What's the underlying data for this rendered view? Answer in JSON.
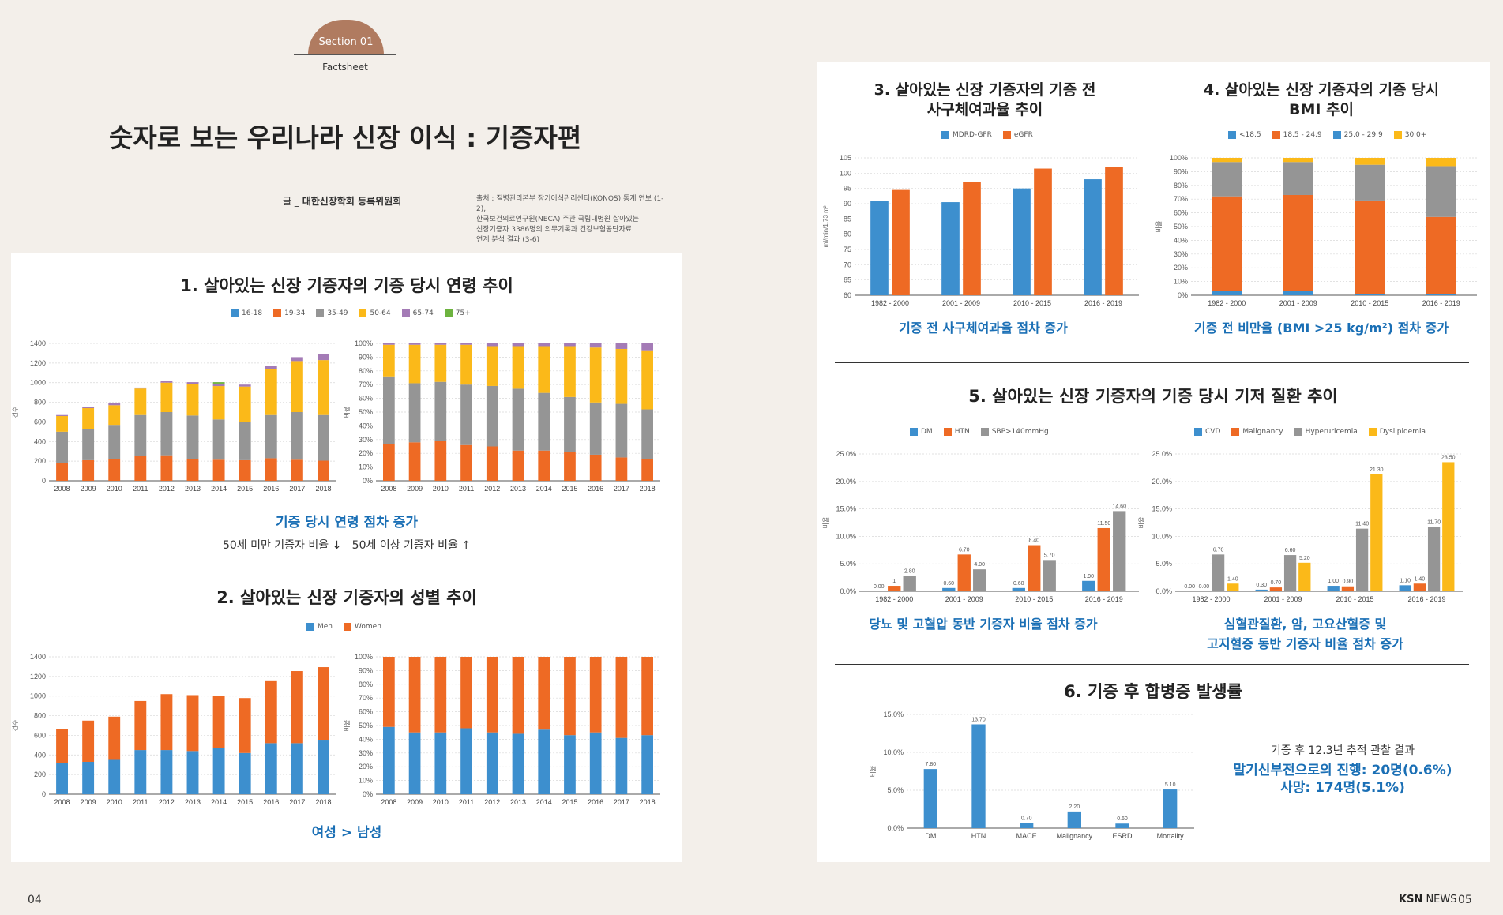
{
  "header": {
    "section": "Section 01",
    "factsheet": "Factsheet",
    "title": "숫자로 보는 우리나라 신장 이식 : 기증자편",
    "byline_prefix": "글 _",
    "byline_author": "대한신장학회 등록위원회",
    "source": "출처 : 질병관리본부 장기이식관리센터(KONOS) 통계 연보 (1-2),\n한국보건의료연구원(NECA) 주관 국립대병원 살아있는\n신장기증자 3386명의 의무기록과 건강보험공단자료\n연계 분석 결과 (3-6)"
  },
  "footer": {
    "page_left": "04",
    "brand_bold": "KSN",
    "brand_rest": " NEWS",
    "page_right": "05"
  },
  "colors": {
    "blue": "#3d8fce",
    "orange": "#ee6a24",
    "gray": "#959595",
    "yellow": "#fbb919",
    "purple": "#a47bb6",
    "green": "#6db33f",
    "caption": "#1a6fb5"
  },
  "sections": {
    "s1": {
      "title": "1. 살아있는 신장 기증자의 기증 당시 연령 추이",
      "caption": "기증 당시 연령 점차 증가",
      "subcaption": "50세 미만 기증자 비율 ↓   50세 이상 기증자 비율 ↑",
      "ylabel": "건수",
      "ylabel_pct": "비율"
    },
    "s2": {
      "title": "2. 살아있는 신장 기증자의 성별 추이",
      "caption": "여성 > 남성",
      "ylabel": "건수",
      "ylabel_pct": "비율"
    },
    "s3": {
      "title": "3. 살아있는 신장 기증자의 기증 전\n사구체여과율 추이",
      "caption": "기증 전 사구체여과율 점차 증가",
      "ylabel": "ml/min/1.73 m²"
    },
    "s4": {
      "title": "4. 살아있는 신장 기증자의 기증 당시\nBMI 추이",
      "caption": "기증 전 비만율 (BMI >25 kg/m²) 점차 증가",
      "ylabel": "비율"
    },
    "s5": {
      "title": "5. 살아있는 신장 기증자의 기증 당시 기저 질환 추이",
      "caption_left": "당뇨 및 고혈압 동반 기증자 비율 점차 증가",
      "caption_right": "심혈관질환, 암, 고요산혈증 및\n고지혈증 동반 기증자 비율 점차 증가",
      "ylabel": "비율"
    },
    "s6": {
      "title": "6. 기증 후 합병증 발생률",
      "note": "기증 후 12.3년 추적 관찰 결과",
      "result": "말기신부전으로의 진행: 20명(0.6%)\n사망: 174명(5.1%)",
      "ylabel": "비율"
    }
  },
  "chart_data": [
    {
      "id": "age_count",
      "type": "bar",
      "stacked": true,
      "categories": [
        "2008",
        "2009",
        "2010",
        "2011",
        "2012",
        "2013",
        "2014",
        "2015",
        "2016",
        "2017",
        "2018"
      ],
      "ylim": [
        0,
        1400
      ],
      "yticks": [
        0,
        200,
        400,
        600,
        800,
        1000,
        1200,
        1400
      ],
      "series": [
        {
          "name": "16-18",
          "color": "#3d8fce",
          "values": [
            0,
            0,
            0,
            0,
            0,
            0,
            0,
            0,
            0,
            0,
            0
          ]
        },
        {
          "name": "19-34",
          "color": "#ee6a24",
          "values": [
            180,
            210,
            220,
            250,
            260,
            225,
            215,
            210,
            230,
            215,
            205
          ]
        },
        {
          "name": "35-49",
          "color": "#959595",
          "values": [
            320,
            320,
            350,
            420,
            440,
            440,
            410,
            390,
            440,
            485,
            465
          ]
        },
        {
          "name": "50-64",
          "color": "#fbb919",
          "values": [
            160,
            210,
            200,
            270,
            300,
            320,
            340,
            360,
            470,
            520,
            560
          ]
        },
        {
          "name": "65-74",
          "color": "#a47bb6",
          "values": [
            10,
            10,
            20,
            10,
            20,
            20,
            25,
            20,
            30,
            40,
            60
          ]
        },
        {
          "name": "75+",
          "color": "#6db33f",
          "values": [
            0,
            0,
            0,
            0,
            0,
            0,
            15,
            0,
            0,
            0,
            0
          ]
        }
      ]
    },
    {
      "id": "age_pct",
      "type": "bar",
      "stacked": true,
      "categories": [
        "2008",
        "2009",
        "2010",
        "2011",
        "2012",
        "2013",
        "2014",
        "2015",
        "2016",
        "2017",
        "2018"
      ],
      "ylim": [
        0,
        100
      ],
      "yticks": [
        0,
        10,
        20,
        30,
        40,
        50,
        60,
        70,
        80,
        90,
        100
      ],
      "series": [
        {
          "name": "16-18",
          "color": "#3d8fce",
          "values": [
            0,
            0,
            0,
            0,
            0,
            0,
            0,
            0,
            0,
            0,
            0
          ]
        },
        {
          "name": "19-34",
          "color": "#ee6a24",
          "values": [
            27,
            28,
            29,
            26,
            25,
            22,
            22,
            21,
            19,
            17,
            16
          ]
        },
        {
          "name": "35-49",
          "color": "#959595",
          "values": [
            49,
            43,
            43,
            44,
            44,
            45,
            42,
            40,
            38,
            39,
            36
          ]
        },
        {
          "name": "50-64",
          "color": "#fbb919",
          "values": [
            23,
            28,
            27,
            29,
            29,
            31,
            34,
            37,
            40,
            40,
            43
          ]
        },
        {
          "name": "65-74",
          "color": "#a47bb6",
          "values": [
            1,
            1,
            1,
            1,
            2,
            2,
            2,
            2,
            3,
            4,
            5
          ]
        },
        {
          "name": "75+",
          "color": "#6db33f",
          "values": [
            0,
            0,
            0,
            0,
            0,
            0,
            0,
            0,
            0,
            0,
            0
          ]
        }
      ]
    },
    {
      "id": "sex_count",
      "type": "bar",
      "stacked": true,
      "categories": [
        "2008",
        "2009",
        "2010",
        "2011",
        "2012",
        "2013",
        "2014",
        "2015",
        "2016",
        "2017",
        "2018"
      ],
      "ylim": [
        0,
        1400
      ],
      "yticks": [
        0,
        200,
        400,
        600,
        800,
        1000,
        1200,
        1400
      ],
      "series": [
        {
          "name": "Men",
          "color": "#3d8fce",
          "values": [
            320,
            330,
            350,
            450,
            450,
            440,
            470,
            420,
            520,
            520,
            555
          ]
        },
        {
          "name": "Women",
          "color": "#ee6a24",
          "values": [
            340,
            420,
            440,
            500,
            570,
            570,
            530,
            560,
            640,
            735,
            740
          ]
        }
      ]
    },
    {
      "id": "sex_pct",
      "type": "bar",
      "stacked": true,
      "categories": [
        "2008",
        "2009",
        "2010",
        "2011",
        "2012",
        "2013",
        "2014",
        "2015",
        "2016",
        "2017",
        "2018"
      ],
      "ylim": [
        0,
        100
      ],
      "yticks": [
        0,
        10,
        20,
        30,
        40,
        50,
        60,
        70,
        80,
        90,
        100
      ],
      "series": [
        {
          "name": "Men",
          "color": "#3d8fce",
          "values": [
            49,
            45,
            45,
            48,
            45,
            44,
            47,
            43,
            45,
            41,
            43
          ]
        },
        {
          "name": "Women",
          "color": "#ee6a24",
          "values": [
            51,
            55,
            55,
            52,
            55,
            56,
            53,
            57,
            55,
            59,
            57
          ]
        }
      ]
    },
    {
      "id": "gfr",
      "type": "bar",
      "categories": [
        "1982 - 2000",
        "2001 - 2009",
        "2010 - 2015",
        "2016 - 2019"
      ],
      "ylim": [
        60,
        105
      ],
      "yticks": [
        60,
        65,
        70,
        75,
        80,
        85,
        90,
        95,
        100,
        105
      ],
      "series": [
        {
          "name": "MDRD-GFR",
          "color": "#3d8fce",
          "values": [
            91,
            90.5,
            95,
            98
          ]
        },
        {
          "name": "eGFR",
          "color": "#ee6a24",
          "values": [
            94.5,
            97,
            101.5,
            102
          ]
        }
      ]
    },
    {
      "id": "bmi",
      "type": "bar",
      "stacked": true,
      "categories": [
        "1982 - 2000",
        "2001 - 2009",
        "2010 - 2015",
        "2016 - 2019"
      ],
      "ylim": [
        0,
        100
      ],
      "yticks": [
        0,
        10,
        20,
        30,
        40,
        50,
        60,
        70,
        80,
        90,
        100
      ],
      "series": [
        {
          "name": "<18.5",
          "color": "#3d8fce",
          "values": [
            3,
            3,
            1,
            1
          ]
        },
        {
          "name": "18.5 - 24.9",
          "color": "#ee6a24",
          "values": [
            69,
            70,
            68,
            56
          ]
        },
        {
          "name": "25.0 - 29.9",
          "color": "#959595",
          "values": [
            25,
            24,
            26,
            37
          ]
        },
        {
          "name": "30.0+",
          "color": "#fbb919",
          "values": [
            3,
            3,
            5,
            6
          ]
        }
      ]
    },
    {
      "id": "dm_htn",
      "type": "bar",
      "categories": [
        "1982 - 2000",
        "2001 - 2009",
        "2010 - 2015",
        "2016 - 2019"
      ],
      "ylim": [
        0,
        25
      ],
      "yticks": [
        0,
        5,
        10,
        15,
        20,
        25
      ],
      "series": [
        {
          "name": "DM",
          "color": "#3d8fce",
          "values": [
            0.0,
            0.6,
            0.6,
            1.9
          ],
          "labels": [
            "0.00",
            "0.60",
            "0.60",
            "1.90"
          ]
        },
        {
          "name": "HTN",
          "color": "#ee6a24",
          "values": [
            1,
            6.7,
            8.4,
            11.5
          ],
          "labels": [
            "1",
            "6.70",
            "8.40",
            "11.50"
          ]
        },
        {
          "name": "SBP>140mmHg",
          "color": "#959595",
          "values": [
            2.8,
            4.0,
            5.7,
            14.6
          ],
          "labels": [
            "2.80",
            "4.00",
            "5.70",
            "14.60"
          ]
        }
      ]
    },
    {
      "id": "cvd",
      "type": "bar",
      "categories": [
        "1982 - 2000",
        "2001 - 2009",
        "2010 - 2015",
        "2016 - 2019"
      ],
      "ylim": [
        0,
        25
      ],
      "yticks": [
        0,
        5,
        10,
        15,
        20,
        25
      ],
      "series": [
        {
          "name": "CVD",
          "color": "#3d8fce",
          "values": [
            0.0,
            0.3,
            1.0,
            1.1
          ],
          "labels": [
            "0.00",
            "0.30",
            "1.00",
            "1.10"
          ]
        },
        {
          "name": "Malignancy",
          "color": "#ee6a24",
          "values": [
            0.0,
            0.7,
            0.9,
            1.4
          ],
          "labels": [
            "0.00",
            "0.70",
            "0.90",
            "1.40"
          ]
        },
        {
          "name": "Hyperuricemia",
          "color": "#959595",
          "values": [
            6.7,
            6.6,
            11.4,
            11.7
          ],
          "labels": [
            "6.70",
            "6.60",
            "11.40",
            "11.70"
          ]
        },
        {
          "name": "Dyslipidemia",
          "color": "#fbb919",
          "values": [
            1.4,
            5.2,
            21.3,
            23.5
          ],
          "labels": [
            "1.40",
            "5.20",
            "21.30",
            "23.50"
          ]
        }
      ]
    },
    {
      "id": "complications",
      "type": "bar",
      "categories": [
        "DM",
        "HTN",
        "MACE",
        "Malignancy",
        "ESRD",
        "Mortality"
      ],
      "ylim": [
        0,
        15
      ],
      "yticks": [
        0,
        5,
        10,
        15
      ],
      "series": [
        {
          "color": "#3d8fce",
          "values": [
            7.8,
            13.7,
            0.7,
            2.2,
            0.6,
            5.1
          ],
          "labels": [
            "7.80",
            "13.70",
            "0.70",
            "2.20",
            "0.60",
            "5.10"
          ]
        }
      ]
    }
  ]
}
